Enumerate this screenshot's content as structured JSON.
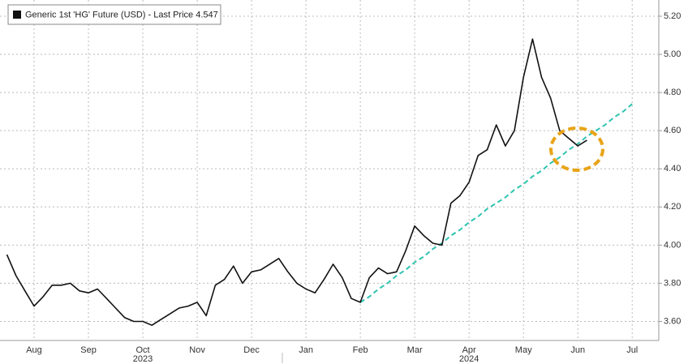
{
  "chart_data": {
    "type": "line",
    "categories": [
      null,
      null,
      null,
      "Aug",
      null,
      null,
      null,
      null,
      null,
      "Sep",
      null,
      null,
      null,
      null,
      null,
      "Oct",
      null,
      null,
      null,
      null,
      null,
      "Nov",
      null,
      null,
      null,
      null,
      null,
      "Dec",
      null,
      null,
      null,
      null,
      null,
      "Jan",
      null,
      null,
      null,
      null,
      null,
      "Feb",
      null,
      null,
      null,
      null,
      null,
      "Mar",
      null,
      null,
      null,
      null,
      null,
      "Apr",
      null,
      null,
      null,
      null,
      null,
      "May",
      null,
      null,
      null,
      null,
      null,
      "Jun",
      null,
      null,
      null,
      null,
      null,
      "Jul",
      null,
      null,
      null,
      null,
      null
    ],
    "year_labels": [
      "2023",
      "2024"
    ],
    "series": [
      {
        "name": "Generic 1st 'HG' Future (USD) - Last Price 4.547",
        "color": "#111111",
        "values": [
          3.95,
          3.84,
          3.76,
          3.68,
          3.73,
          3.79,
          3.79,
          3.8,
          3.76,
          3.75,
          3.77,
          3.72,
          3.67,
          3.62,
          3.6,
          3.6,
          3.58,
          3.61,
          3.64,
          3.67,
          3.68,
          3.7,
          3.63,
          3.79,
          3.82,
          3.89,
          3.8,
          3.86,
          3.87,
          3.9,
          3.93,
          3.86,
          3.8,
          3.77,
          3.75,
          3.82,
          3.9,
          3.83,
          3.72,
          3.7,
          3.83,
          3.88,
          3.85,
          3.86,
          3.97,
          4.1,
          4.05,
          4.01,
          4.0,
          4.22,
          4.26,
          4.33,
          4.47,
          4.5,
          4.63,
          4.52,
          4.6,
          4.88,
          5.08,
          4.88,
          4.77,
          4.6,
          4.56,
          4.52,
          4.55,
          null,
          null,
          null,
          null,
          null,
          null,
          null,
          null,
          null,
          null
        ]
      }
    ],
    "trendline": {
      "color": "#2ec4b0",
      "values": [
        null,
        null,
        null,
        null,
        null,
        null,
        null,
        null,
        null,
        null,
        null,
        null,
        null,
        null,
        null,
        null,
        null,
        null,
        null,
        null,
        null,
        null,
        null,
        null,
        null,
        null,
        null,
        null,
        null,
        null,
        null,
        null,
        null,
        null,
        null,
        null,
        null,
        null,
        null,
        3.7,
        3.73,
        3.77,
        3.8,
        3.84,
        3.87,
        3.91,
        3.94,
        3.98,
        4.01,
        4.05,
        4.08,
        4.12,
        4.15,
        4.19,
        4.22,
        4.25,
        4.29,
        4.32,
        4.36,
        4.39,
        4.43,
        4.46,
        4.5,
        4.53,
        4.57,
        4.6,
        4.63,
        4.67,
        4.7,
        4.74,
        null,
        null,
        null,
        null,
        null
      ]
    },
    "ylim": [
      3.5,
      5.285
    ],
    "yticks": [
      {
        "value": 3.6,
        "label": "3.60"
      },
      {
        "value": 3.8,
        "label": "3.80"
      },
      {
        "value": 4.0,
        "label": "4.00"
      },
      {
        "value": 4.2,
        "label": "4.20"
      },
      {
        "value": 4.4,
        "label": "4.40"
      },
      {
        "value": 4.6,
        "label": "4.60"
      },
      {
        "value": 4.8,
        "label": "4.80"
      },
      {
        "value": 5.0,
        "label": "5.00"
      },
      {
        "value": 5.2,
        "label": "5.20"
      }
    ],
    "grid": true
  }
}
